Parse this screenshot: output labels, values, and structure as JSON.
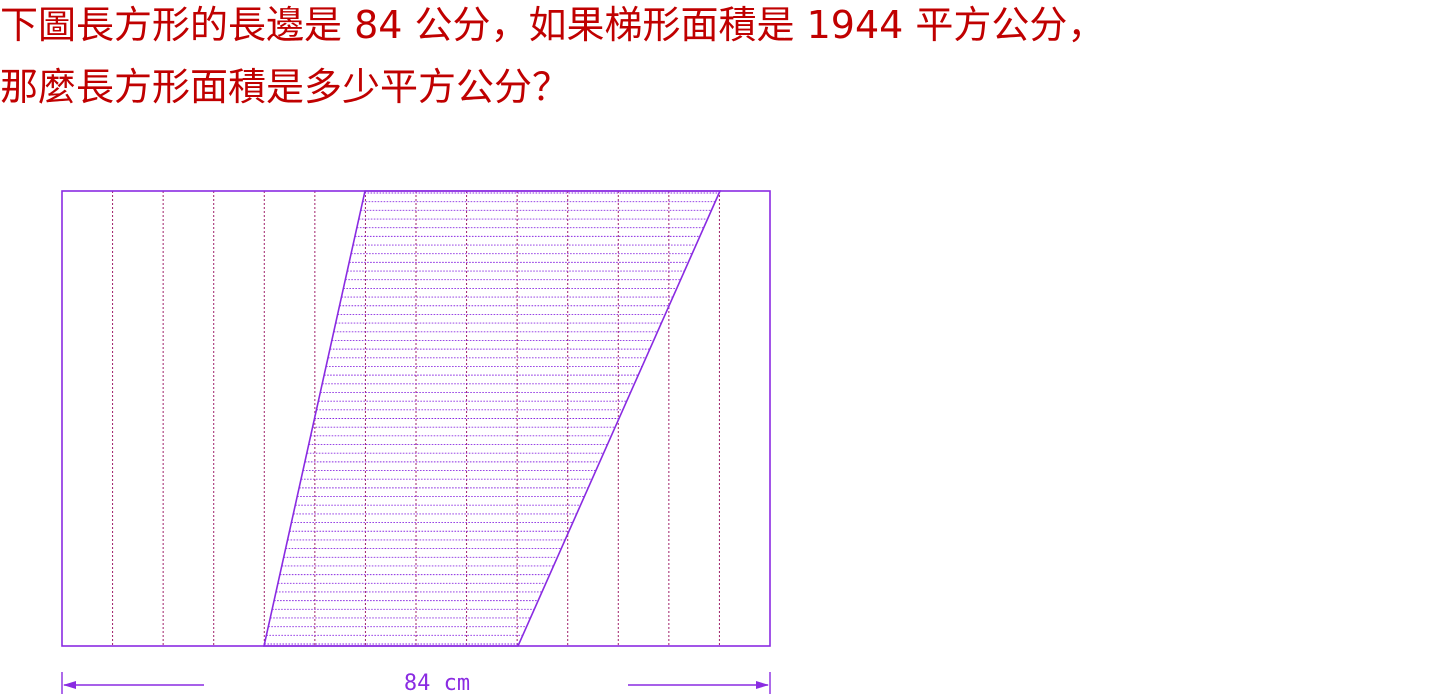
{
  "question": {
    "line1": "下圖長方形的長邊是 84 公分，如果梯形面積是 1944 平方公分，",
    "line2": "那麼長方形面積是多少平方公分？"
  },
  "diagram": {
    "dimension_label": "84 cm",
    "colors": {
      "question_text": "#c00000",
      "outline": "#8a2be2",
      "grid": "#a0206a",
      "hatch": "#8a2be2"
    }
  }
}
